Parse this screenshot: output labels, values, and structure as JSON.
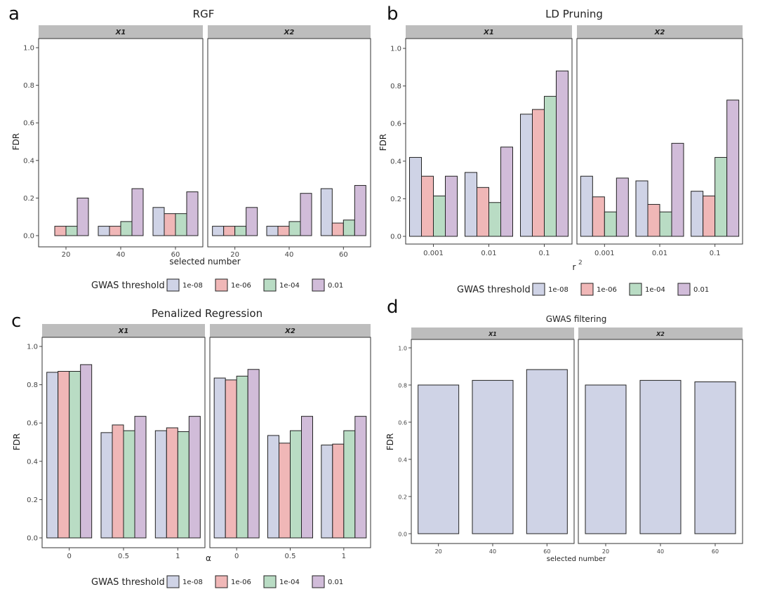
{
  "colors": {
    "1e-08": "#cfd3e6",
    "1e-06": "#f0b7b7",
    "1e-04": "#b9dcc4",
    "0.01": "#d1bcd9",
    "strip": "#bdbdbd",
    "single": "#cfd3e6"
  },
  "chart_data": [
    {
      "id": "a",
      "panel_letter": "a",
      "type": "bar",
      "title": "RGF",
      "xlabel": "selected number",
      "ylabel": "FDR",
      "ylim": [
        0,
        1
      ],
      "yticks": [
        "0.0",
        "0.2",
        "0.4",
        "0.6",
        "0.8",
        "1.0"
      ],
      "legend_title": "GWAS threshold",
      "legend_labels": [
        "1e-08",
        "1e-06",
        "1e-04",
        "0.01"
      ],
      "facets": [
        {
          "label": "X1",
          "categories": [
            "20",
            "40",
            "60"
          ],
          "series": [
            {
              "name": "1e-08",
              "values": [
                0.0,
                0.05,
                0.15
              ]
            },
            {
              "name": "1e-06",
              "values": [
                0.05,
                0.05,
                0.117
              ]
            },
            {
              "name": "1e-04",
              "values": [
                0.05,
                0.075,
                0.117
              ]
            },
            {
              "name": "0.01",
              "values": [
                0.2,
                0.25,
                0.233
              ]
            }
          ]
        },
        {
          "label": "X2",
          "categories": [
            "20",
            "40",
            "60"
          ],
          "series": [
            {
              "name": "1e-08",
              "values": [
                0.05,
                0.05,
                0.25
              ]
            },
            {
              "name": "1e-06",
              "values": [
                0.05,
                0.05,
                0.067
              ]
            },
            {
              "name": "1e-04",
              "values": [
                0.05,
                0.075,
                0.083
              ]
            },
            {
              "name": "0.01",
              "values": [
                0.15,
                0.225,
                0.267
              ]
            }
          ]
        }
      ]
    },
    {
      "id": "b",
      "panel_letter": "b",
      "type": "bar",
      "title": "LD Pruning",
      "xlabel": "r",
      "xlabel_sup": "2",
      "ylabel": "FDR",
      "ylim": [
        0,
        1
      ],
      "yticks": [
        "0.0",
        "0.2",
        "0.4",
        "0.6",
        "0.8",
        "1.0"
      ],
      "legend_title": "GWAS threshold",
      "legend_labels": [
        "1e-08",
        "1e-06",
        "1e-04",
        "0.01"
      ],
      "facets": [
        {
          "label": "X1",
          "categories": [
            "0.001",
            "0.01",
            "0.1"
          ],
          "series": [
            {
              "name": "1e-08",
              "values": [
                0.42,
                0.34,
                0.65
              ]
            },
            {
              "name": "1e-06",
              "values": [
                0.32,
                0.26,
                0.675
              ]
            },
            {
              "name": "1e-04",
              "values": [
                0.215,
                0.18,
                0.745
              ]
            },
            {
              "name": "0.01",
              "values": [
                0.32,
                0.475,
                0.88
              ]
            }
          ]
        },
        {
          "label": "X2",
          "categories": [
            "0.001",
            "0.01",
            "0.1"
          ],
          "series": [
            {
              "name": "1e-08",
              "values": [
                0.32,
                0.295,
                0.24
              ]
            },
            {
              "name": "1e-06",
              "values": [
                0.21,
                0.17,
                0.215
              ]
            },
            {
              "name": "1e-04",
              "values": [
                0.13,
                0.13,
                0.42
              ]
            },
            {
              "name": "0.01",
              "values": [
                0.31,
                0.495,
                0.725
              ]
            }
          ]
        }
      ]
    },
    {
      "id": "c",
      "panel_letter": "c",
      "type": "bar",
      "title": "Penalized Regression",
      "xlabel": "α",
      "ylabel": "FDR",
      "ylim": [
        0,
        1
      ],
      "yticks": [
        "0.0",
        "0.2",
        "0.4",
        "0.6",
        "0.8",
        "1.0"
      ],
      "legend_title": "GWAS threshold",
      "legend_labels": [
        "1e-08",
        "1e-06",
        "1e-04",
        "0.01"
      ],
      "facets": [
        {
          "label": "X1",
          "categories": [
            "0",
            "0.5",
            "1"
          ],
          "series": [
            {
              "name": "1e-08",
              "values": [
                0.865,
                0.55,
                0.56
              ]
            },
            {
              "name": "1e-06",
              "values": [
                0.87,
                0.59,
                0.575
              ]
            },
            {
              "name": "1e-04",
              "values": [
                0.87,
                0.56,
                0.555
              ]
            },
            {
              "name": "0.01",
              "values": [
                0.905,
                0.635,
                0.635
              ]
            }
          ]
        },
        {
          "label": "X2",
          "categories": [
            "0",
            "0.5",
            "1"
          ],
          "series": [
            {
              "name": "1e-08",
              "values": [
                0.835,
                0.535,
                0.485
              ]
            },
            {
              "name": "1e-06",
              "values": [
                0.825,
                0.495,
                0.49
              ]
            },
            {
              "name": "1e-04",
              "values": [
                0.845,
                0.56,
                0.56
              ]
            },
            {
              "name": "0.01",
              "values": [
                0.88,
                0.635,
                0.635
              ]
            }
          ]
        }
      ]
    },
    {
      "id": "d",
      "panel_letter": "d",
      "type": "bar",
      "title": "GWAS filtering",
      "xlabel": "selected number",
      "ylabel": "FDR",
      "ylim": [
        0,
        1
      ],
      "yticks": [
        "0.0",
        "0.2",
        "0.4",
        "0.6",
        "0.8",
        "1.0"
      ],
      "legend_title": "",
      "legend_labels": [],
      "facets": [
        {
          "label": "X1",
          "categories": [
            "20",
            "40",
            "60"
          ],
          "series": [
            {
              "name": "single",
              "values": [
                0.8,
                0.825,
                0.883
              ]
            }
          ]
        },
        {
          "label": "X2",
          "categories": [
            "20",
            "40",
            "60"
          ],
          "series": [
            {
              "name": "single",
              "values": [
                0.8,
                0.825,
                0.817
              ]
            }
          ]
        }
      ]
    }
  ]
}
